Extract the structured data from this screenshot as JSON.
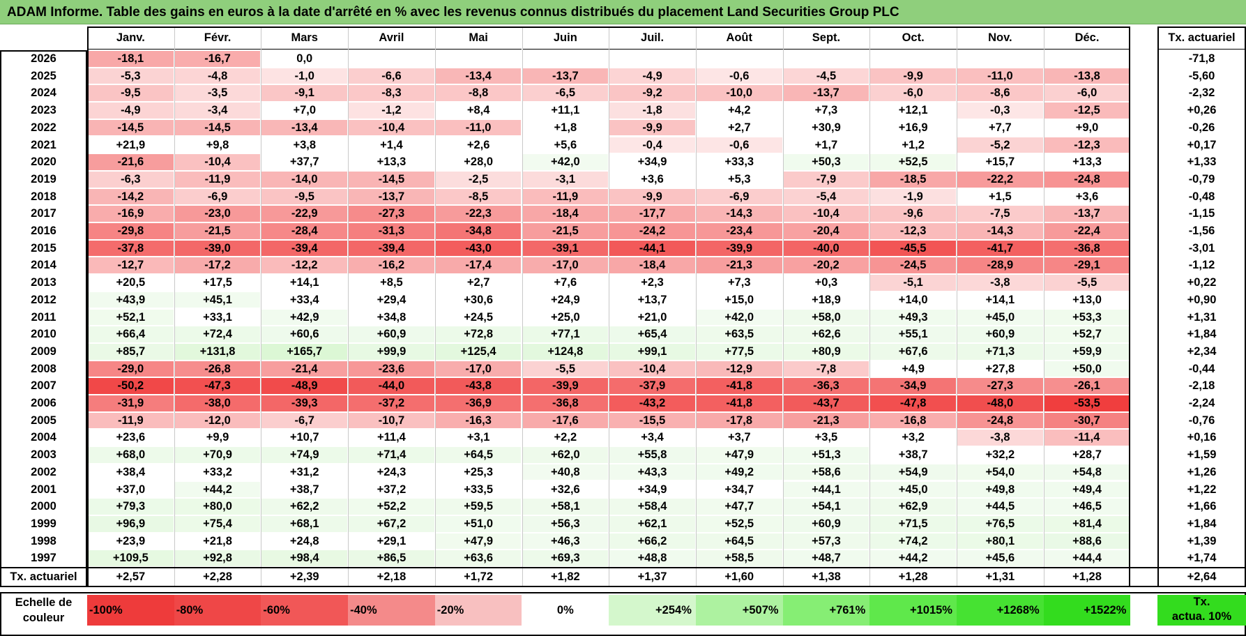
{
  "title": "ADAM Informe. Table des gains en euros à la date d'arrêté en % avec les revenus connus distribués du placement Land Securities Group PLC",
  "months": [
    "Janv.",
    "Févr.",
    "Mars",
    "Avril",
    "Mai",
    "Juin",
    "Juil.",
    "Août",
    "Sept.",
    "Oct.",
    "Nov.",
    "Déc."
  ],
  "actuarial_header": "Tx. actuariel",
  "rows": [
    {
      "year": "2026",
      "values": [
        "-18,1",
        "-16,7",
        "0,0",
        "",
        "",
        "",
        "",
        "",
        "",
        "",
        "",
        ""
      ],
      "rate": "-71,8"
    },
    {
      "year": "2025",
      "values": [
        "-5,3",
        "-4,8",
        "-1,0",
        "-6,6",
        "-13,4",
        "-13,7",
        "-4,9",
        "-0,6",
        "-4,5",
        "-9,9",
        "-11,0",
        "-13,8"
      ],
      "rate": "-5,60"
    },
    {
      "year": "2024",
      "values": [
        "-9,5",
        "-3,5",
        "-9,1",
        "-8,3",
        "-8,8",
        "-6,5",
        "-9,2",
        "-10,0",
        "-13,7",
        "-6,0",
        "-8,6",
        "-6,0"
      ],
      "rate": "-2,32"
    },
    {
      "year": "2023",
      "values": [
        "-4,9",
        "-3,4",
        "+7,0",
        "-1,2",
        "+8,4",
        "+11,1",
        "-1,8",
        "+4,2",
        "+7,3",
        "+12,1",
        "-0,3",
        "-12,5"
      ],
      "rate": "+0,26"
    },
    {
      "year": "2022",
      "values": [
        "-14,5",
        "-14,5",
        "-13,4",
        "-10,4",
        "-11,0",
        "+1,8",
        "-9,9",
        "+2,7",
        "+30,9",
        "+16,9",
        "+7,7",
        "+9,0"
      ],
      "rate": "-0,26"
    },
    {
      "year": "2021",
      "values": [
        "+21,9",
        "+9,8",
        "+3,8",
        "+1,4",
        "+2,6",
        "+5,6",
        "-0,4",
        "-0,6",
        "+1,7",
        "+1,2",
        "-5,2",
        "-12,3"
      ],
      "rate": "+0,17"
    },
    {
      "year": "2020",
      "values": [
        "-21,6",
        "-10,4",
        "+37,7",
        "+13,3",
        "+28,0",
        "+42,0",
        "+34,9",
        "+33,3",
        "+50,3",
        "+52,5",
        "+15,7",
        "+13,3"
      ],
      "rate": "+1,33"
    },
    {
      "year": "2019",
      "values": [
        "-6,3",
        "-11,9",
        "-14,0",
        "-14,5",
        "-2,5",
        "-3,1",
        "+3,6",
        "+5,3",
        "-7,9",
        "-18,5",
        "-22,2",
        "-24,8"
      ],
      "rate": "-0,79"
    },
    {
      "year": "2018",
      "values": [
        "-14,2",
        "-6,9",
        "-9,5",
        "-13,7",
        "-8,5",
        "-11,9",
        "-9,9",
        "-6,9",
        "-5,4",
        "-1,9",
        "+1,5",
        "+3,6"
      ],
      "rate": "-0,48"
    },
    {
      "year": "2017",
      "values": [
        "-16,9",
        "-23,0",
        "-22,9",
        "-27,3",
        "-22,3",
        "-18,4",
        "-17,7",
        "-14,3",
        "-10,4",
        "-9,6",
        "-7,5",
        "-13,7"
      ],
      "rate": "-1,15"
    },
    {
      "year": "2016",
      "values": [
        "-29,8",
        "-21,5",
        "-28,4",
        "-31,3",
        "-34,8",
        "-21,5",
        "-24,2",
        "-23,4",
        "-20,4",
        "-12,3",
        "-14,3",
        "-22,4"
      ],
      "rate": "-1,56"
    },
    {
      "year": "2015",
      "values": [
        "-37,8",
        "-39,0",
        "-39,4",
        "-39,4",
        "-43,0",
        "-39,1",
        "-44,1",
        "-39,9",
        "-40,0",
        "-45,5",
        "-41,7",
        "-36,8"
      ],
      "rate": "-3,01"
    },
    {
      "year": "2014",
      "values": [
        "-12,7",
        "-17,2",
        "-12,2",
        "-16,2",
        "-17,4",
        "-17,0",
        "-18,4",
        "-21,3",
        "-20,2",
        "-24,5",
        "-28,9",
        "-29,1"
      ],
      "rate": "-1,12"
    },
    {
      "year": "2013",
      "values": [
        "+20,5",
        "+17,5",
        "+14,1",
        "+8,5",
        "+2,7",
        "+7,6",
        "+2,3",
        "+7,3",
        "+0,3",
        "-5,1",
        "-3,8",
        "-5,5"
      ],
      "rate": "+0,22"
    },
    {
      "year": "2012",
      "values": [
        "+43,9",
        "+45,1",
        "+33,4",
        "+29,4",
        "+30,6",
        "+24,9",
        "+13,7",
        "+15,0",
        "+18,9",
        "+14,0",
        "+14,1",
        "+13,0"
      ],
      "rate": "+0,90"
    },
    {
      "year": "2011",
      "values": [
        "+52,1",
        "+33,1",
        "+42,9",
        "+34,8",
        "+24,5",
        "+25,0",
        "+21,0",
        "+42,0",
        "+58,0",
        "+49,3",
        "+45,0",
        "+53,3"
      ],
      "rate": "+1,31"
    },
    {
      "year": "2010",
      "values": [
        "+66,4",
        "+72,4",
        "+60,6",
        "+60,9",
        "+72,8",
        "+77,1",
        "+65,4",
        "+63,5",
        "+62,6",
        "+55,1",
        "+60,9",
        "+52,7"
      ],
      "rate": "+1,84"
    },
    {
      "year": "2009",
      "values": [
        "+85,7",
        "+131,8",
        "+165,7",
        "+99,9",
        "+125,4",
        "+124,8",
        "+99,1",
        "+77,5",
        "+80,9",
        "+67,6",
        "+71,3",
        "+59,9"
      ],
      "rate": "+2,34"
    },
    {
      "year": "2008",
      "values": [
        "-29,0",
        "-26,8",
        "-21,4",
        "-23,6",
        "-17,0",
        "-5,5",
        "-10,4",
        "-12,9",
        "-7,8",
        "+4,9",
        "+27,8",
        "+50,0"
      ],
      "rate": "-0,44"
    },
    {
      "year": "2007",
      "values": [
        "-50,2",
        "-47,3",
        "-48,9",
        "-44,0",
        "-43,8",
        "-39,9",
        "-37,9",
        "-41,8",
        "-36,3",
        "-34,9",
        "-27,3",
        "-26,1"
      ],
      "rate": "-2,18"
    },
    {
      "year": "2006",
      "values": [
        "-31,9",
        "-38,0",
        "-39,3",
        "-37,2",
        "-36,9",
        "-36,8",
        "-43,2",
        "-41,8",
        "-43,7",
        "-47,8",
        "-48,0",
        "-53,5"
      ],
      "rate": "-2,24"
    },
    {
      "year": "2005",
      "values": [
        "-11,9",
        "-12,0",
        "-6,7",
        "-10,7",
        "-16,3",
        "-17,6",
        "-15,5",
        "-17,8",
        "-21,3",
        "-16,8",
        "-24,8",
        "-30,7"
      ],
      "rate": "-0,76"
    },
    {
      "year": "2004",
      "values": [
        "+23,6",
        "+9,9",
        "+10,7",
        "+11,4",
        "+3,1",
        "+2,2",
        "+3,4",
        "+3,7",
        "+3,5",
        "+3,2",
        "-3,8",
        "-11,4"
      ],
      "rate": "+0,16"
    },
    {
      "year": "2003",
      "values": [
        "+68,0",
        "+70,9",
        "+74,9",
        "+71,4",
        "+64,5",
        "+62,0",
        "+55,8",
        "+47,9",
        "+51,3",
        "+38,7",
        "+32,2",
        "+28,7"
      ],
      "rate": "+1,59"
    },
    {
      "year": "2002",
      "values": [
        "+38,4",
        "+33,2",
        "+31,2",
        "+24,3",
        "+25,3",
        "+40,8",
        "+43,3",
        "+49,2",
        "+58,6",
        "+54,9",
        "+54,0",
        "+54,8"
      ],
      "rate": "+1,26"
    },
    {
      "year": "2001",
      "values": [
        "+37,0",
        "+44,2",
        "+38,7",
        "+37,2",
        "+33,5",
        "+32,6",
        "+34,9",
        "+34,7",
        "+44,1",
        "+45,0",
        "+49,8",
        "+49,4"
      ],
      "rate": "+1,22"
    },
    {
      "year": "2000",
      "values": [
        "+79,3",
        "+80,0",
        "+62,2",
        "+52,2",
        "+59,5",
        "+58,1",
        "+58,4",
        "+47,7",
        "+54,1",
        "+62,9",
        "+44,5",
        "+46,5"
      ],
      "rate": "+1,66"
    },
    {
      "year": "1999",
      "values": [
        "+96,9",
        "+75,4",
        "+68,1",
        "+67,2",
        "+51,0",
        "+56,3",
        "+62,1",
        "+52,5",
        "+60,9",
        "+71,5",
        "+76,5",
        "+81,4"
      ],
      "rate": "+1,84"
    },
    {
      "year": "1998",
      "values": [
        "+23,9",
        "+21,8",
        "+24,8",
        "+29,1",
        "+47,9",
        "+46,3",
        "+66,2",
        "+64,5",
        "+57,3",
        "+74,2",
        "+80,1",
        "+88,6"
      ],
      "rate": "+1,39"
    },
    {
      "year": "1997",
      "values": [
        "+109,5",
        "+92,8",
        "+98,4",
        "+86,5",
        "+63,6",
        "+69,3",
        "+48,8",
        "+58,5",
        "+48,7",
        "+44,2",
        "+45,6",
        "+44,4"
      ],
      "rate": "+1,74"
    }
  ],
  "footer": {
    "label": "Tx. actuariel",
    "values": [
      "+2,57",
      "+2,28",
      "+2,39",
      "+2,18",
      "+1,72",
      "+1,82",
      "+1,37",
      "+1,60",
      "+1,38",
      "+1,28",
      "+1,31",
      "+1,28"
    ],
    "rate": "+2,64"
  },
  "legend": {
    "label_line1": "Echelle de",
    "label_line2": "couleur",
    "scale": [
      {
        "text": "-100%",
        "color": "#ee3b3b",
        "align": "left"
      },
      {
        "text": "-80%",
        "color": "#ef4747",
        "align": "left"
      },
      {
        "text": "-60%",
        "color": "#f15757",
        "align": "left"
      },
      {
        "text": "-40%",
        "color": "#f48a8a",
        "align": "left"
      },
      {
        "text": "-20%",
        "color": "#f8c0c0",
        "align": "left"
      },
      {
        "text": "0%",
        "color": "#ffffff",
        "align": "center"
      },
      {
        "text": "+254%",
        "color": "#d4f7cc",
        "align": "right"
      },
      {
        "text": "+507%",
        "color": "#adf2a0",
        "align": "right"
      },
      {
        "text": "+761%",
        "color": "#86ee74",
        "align": "right"
      },
      {
        "text": "+1015%",
        "color": "#5fe84b",
        "align": "right"
      },
      {
        "text": "+1268%",
        "color": "#46e232",
        "align": "right"
      },
      {
        "text": "+1522%",
        "color": "#33dc1e",
        "align": "right"
      }
    ],
    "tx_line1": "Tx.",
    "tx_line2": "actua. 10%",
    "tx_color": "#33dc1e"
  },
  "colors": {
    "title_bg": "#8fcf7c",
    "negative_max": "#ee3b3b",
    "positive_light": "#f1fbef",
    "neutral": "#ffffff"
  }
}
